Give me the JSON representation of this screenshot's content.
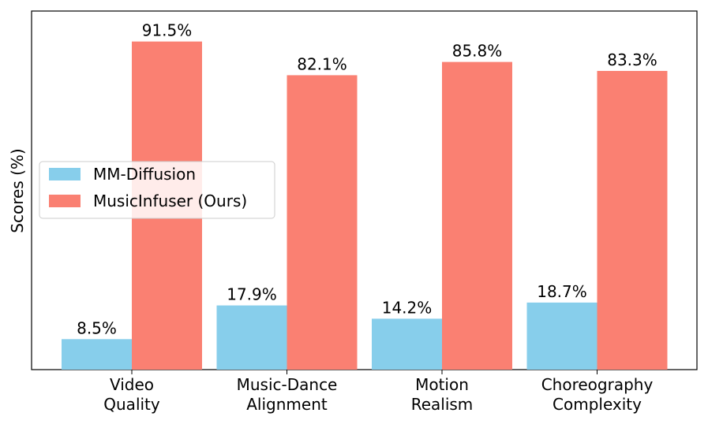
{
  "chart_data": {
    "type": "bar",
    "ylabel": "Scores (%)",
    "ylim": [
      0,
      100
    ],
    "legend_position": "center-left",
    "categories": [
      [
        "Video",
        "Quality"
      ],
      [
        "Music-Dance",
        "Alignment"
      ],
      [
        "Motion",
        "Realism"
      ],
      [
        "Choreography",
        "Complexity"
      ]
    ],
    "series": [
      {
        "name": "MM-Diffusion",
        "color": "#87ceeb",
        "values": [
          8.5,
          17.9,
          14.2,
          18.7
        ],
        "labels": [
          "8.5%",
          "17.9%",
          "14.2%",
          "18.7%"
        ]
      },
      {
        "name": "MusicInfuser (Ours)",
        "color": "#fa8072",
        "values": [
          91.5,
          82.1,
          85.8,
          83.3
        ],
        "labels": [
          "91.5%",
          "82.1%",
          "85.8%",
          "83.3%"
        ]
      }
    ]
  }
}
